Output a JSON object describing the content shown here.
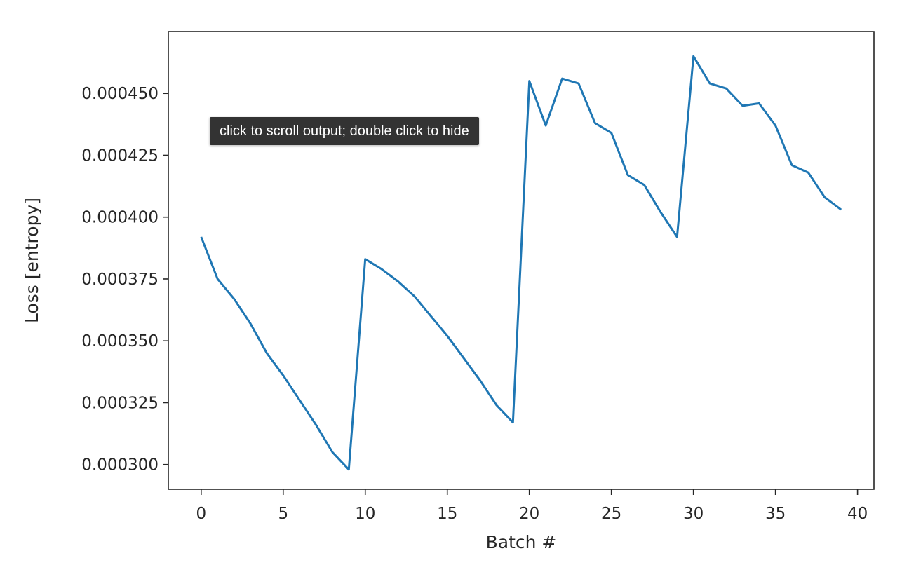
{
  "tooltip": {
    "text": "click to scroll output; double click to hide"
  },
  "chart_data": {
    "type": "line",
    "title": "",
    "xlabel": "Batch #",
    "ylabel": "Loss [entropy]",
    "xlim": [
      -2,
      41
    ],
    "ylim": [
      0.00029,
      0.000475
    ],
    "xticks": [
      0,
      5,
      10,
      15,
      20,
      25,
      30,
      35,
      40
    ],
    "yticks": [
      0.0003,
      0.000325,
      0.00035,
      0.000375,
      0.0004,
      0.000425,
      0.00045
    ],
    "ytick_labels": [
      "0.000300",
      "0.000325",
      "0.000350",
      "0.000375",
      "0.000400",
      "0.000425",
      "0.000450"
    ],
    "grid": false,
    "series": [
      {
        "color": "#1f77b4",
        "x": [
          0,
          1,
          2,
          3,
          4,
          5,
          6,
          7,
          8,
          9,
          10,
          11,
          12,
          13,
          14,
          15,
          16,
          17,
          18,
          19,
          20,
          21,
          22,
          23,
          24,
          25,
          26,
          27,
          28,
          29,
          30,
          31,
          32,
          33,
          34,
          35,
          36,
          37,
          38,
          39
        ],
        "y": [
          0.000392,
          0.000375,
          0.000367,
          0.000357,
          0.000345,
          0.000336,
          0.000326,
          0.000316,
          0.000305,
          0.000298,
          0.000383,
          0.000379,
          0.000374,
          0.000368,
          0.00036,
          0.000352,
          0.000343,
          0.000334,
          0.000324,
          0.000317,
          0.000455,
          0.000437,
          0.000456,
          0.000454,
          0.000438,
          0.000434,
          0.000417,
          0.000413,
          0.000402,
          0.000392,
          0.000465,
          0.000454,
          0.000452,
          0.000445,
          0.000446,
          0.000437,
          0.000421,
          0.000418,
          0.000408,
          0.000403
        ]
      }
    ]
  }
}
